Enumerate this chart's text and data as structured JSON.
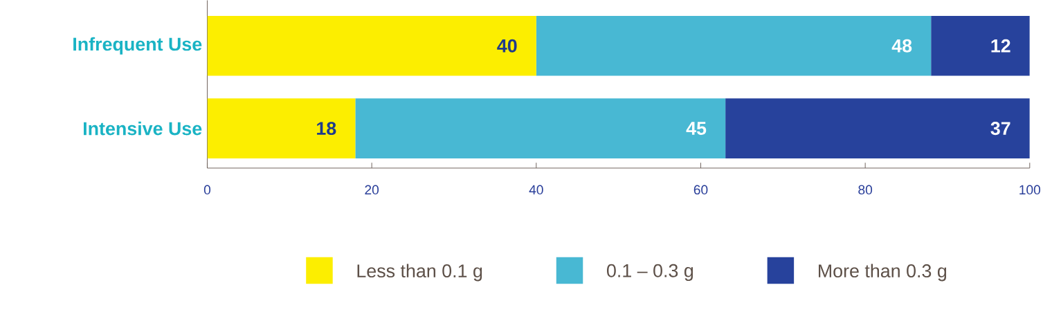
{
  "chart_data": {
    "type": "bar",
    "orientation": "horizontal",
    "stacked": true,
    "categories": [
      "Infrequent Use",
      "Intensive Use"
    ],
    "series": [
      {
        "name": "Less than 0.1 g",
        "color": "#fcee00",
        "values": [
          40,
          18
        ]
      },
      {
        "name": "0.1 – 0.3 g",
        "color": "#48b8d3",
        "values": [
          48,
          45
        ]
      },
      {
        "name": "More than 0.3 g",
        "color": "#27429c",
        "values": [
          12,
          37
        ]
      }
    ],
    "xlim": [
      0,
      100
    ],
    "xticks": [
      0,
      20,
      40,
      60,
      80,
      100
    ],
    "data_labels": true,
    "legend": "bottom"
  }
}
